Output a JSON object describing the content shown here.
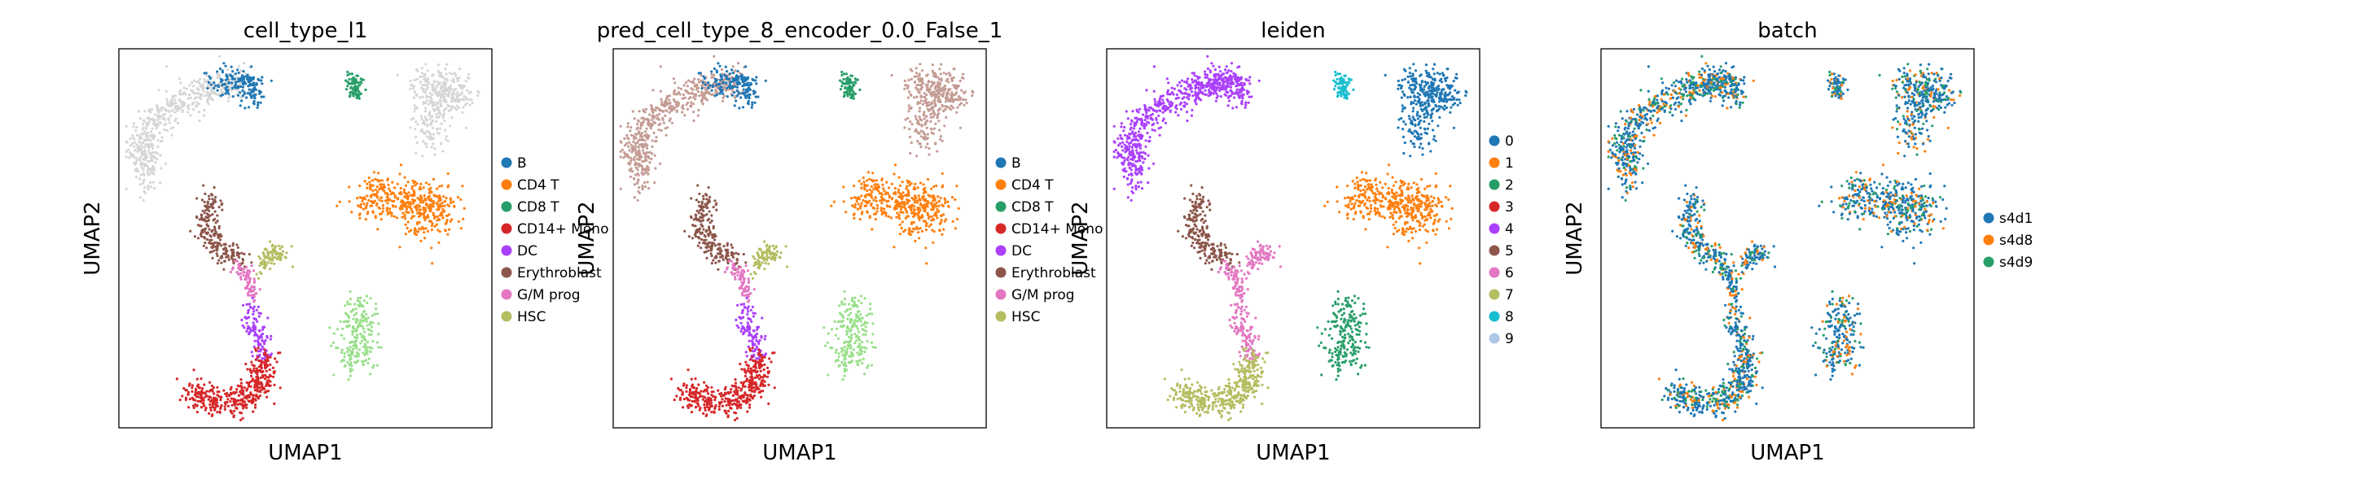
{
  "chart_data": [
    {
      "type": "scatter",
      "title": "cell_type_l1",
      "xlabel": "UMAP1",
      "ylabel": "UMAP2",
      "grid": false,
      "legend_position": "right",
      "legend": [
        {
          "label": "B",
          "color": "#1f77b4"
        },
        {
          "label": "CD4 T",
          "color": "#ff7f0e"
        },
        {
          "label": "CD8 T",
          "color": "#279e68"
        },
        {
          "label": "CD14+ Mono",
          "color": "#d62728"
        },
        {
          "label": "DC",
          "color": "#aa40fc"
        },
        {
          "label": "Erythroblast",
          "color": "#8c564b"
        },
        {
          "label": "G/M prog",
          "color": "#e377c2"
        },
        {
          "label": "HSC",
          "color": "#b5bd61"
        }
      ],
      "point_colors": {
        "arc": "#d6d6d6",
        "arc_top": "#1f77b4",
        "green_top": "#279e68",
        "grey_right": "#d6d6d6",
        "orange": "#ff7f0e",
        "brown": "#8c564b",
        "hsc": "#b5bd61",
        "dc": "#aa40fc",
        "mono": "#d62728",
        "lightgreen": "#98df8a",
        "pink": "#e377c2"
      }
    },
    {
      "type": "scatter",
      "title": "pred_cell_type_8_encoder_0.0_False_1",
      "xlabel": "UMAP1",
      "ylabel": "UMAP2",
      "grid": false,
      "legend_position": "right",
      "legend": [
        {
          "label": "B",
          "color": "#1f77b4"
        },
        {
          "label": "CD4 T",
          "color": "#ff7f0e"
        },
        {
          "label": "CD8 T",
          "color": "#279e68"
        },
        {
          "label": "CD14+ Mono",
          "color": "#d62728"
        },
        {
          "label": "DC",
          "color": "#aa40fc"
        },
        {
          "label": "Erythroblast",
          "color": "#8c564b"
        },
        {
          "label": "G/M prog",
          "color": "#e377c2"
        },
        {
          "label": "HSC",
          "color": "#b5bd61"
        }
      ],
      "point_colors": {
        "arc": "#c49c94",
        "arc_top": "#1f77b4",
        "green_top": "#279e68",
        "grey_right": "#c49c94",
        "orange": "#ff7f0e",
        "brown": "#8c564b",
        "hsc": "#b5bd61",
        "dc": "#aa40fc",
        "mono": "#d62728",
        "lightgreen": "#98df8a",
        "pink": "#e377c2"
      }
    },
    {
      "type": "scatter",
      "title": "leiden",
      "xlabel": "UMAP1",
      "ylabel": "UMAP2",
      "grid": false,
      "legend_position": "right",
      "legend": [
        {
          "label": "0",
          "color": "#1f77b4"
        },
        {
          "label": "1",
          "color": "#ff7f0e"
        },
        {
          "label": "2",
          "color": "#279e68"
        },
        {
          "label": "3",
          "color": "#d62728"
        },
        {
          "label": "4",
          "color": "#aa40fc"
        },
        {
          "label": "5",
          "color": "#8c564b"
        },
        {
          "label": "6",
          "color": "#e377c2"
        },
        {
          "label": "7",
          "color": "#b5bd61"
        },
        {
          "label": "8",
          "color": "#17becf"
        },
        {
          "label": "9",
          "color": "#aec7e8"
        }
      ],
      "point_colors": {
        "arc": "#aa40fc",
        "arc_top": "#aa40fc",
        "green_top": "#17becf",
        "grey_right": "#1f77b4",
        "orange": "#ff7f0e",
        "brown": "#8c564b",
        "hsc": "#e377c2",
        "dc": "#e377c2",
        "mono": "#b5bd61",
        "lightgreen": "#279e68",
        "pink": "#e377c2"
      }
    },
    {
      "type": "scatter",
      "title": "batch",
      "xlabel": "UMAP1",
      "ylabel": "UMAP2",
      "grid": false,
      "legend_position": "right",
      "legend": [
        {
          "label": "s4d1",
          "color": "#1f77b4"
        },
        {
          "label": "s4d8",
          "color": "#ff7f0e"
        },
        {
          "label": "s4d9",
          "color": "#279e68"
        }
      ],
      "point_colors": {
        "arc": "#1f77b4",
        "arc_top": "#1f77b4",
        "green_top": "#1f77b4",
        "grey_right": "#1f77b4",
        "orange": "#1f77b4",
        "brown": "#1f77b4",
        "hsc": "#1f77b4",
        "dc": "#1f77b4",
        "mono": "#1f77b4",
        "lightgreen": "#1f77b4",
        "pink": "#1f77b4"
      }
    }
  ]
}
